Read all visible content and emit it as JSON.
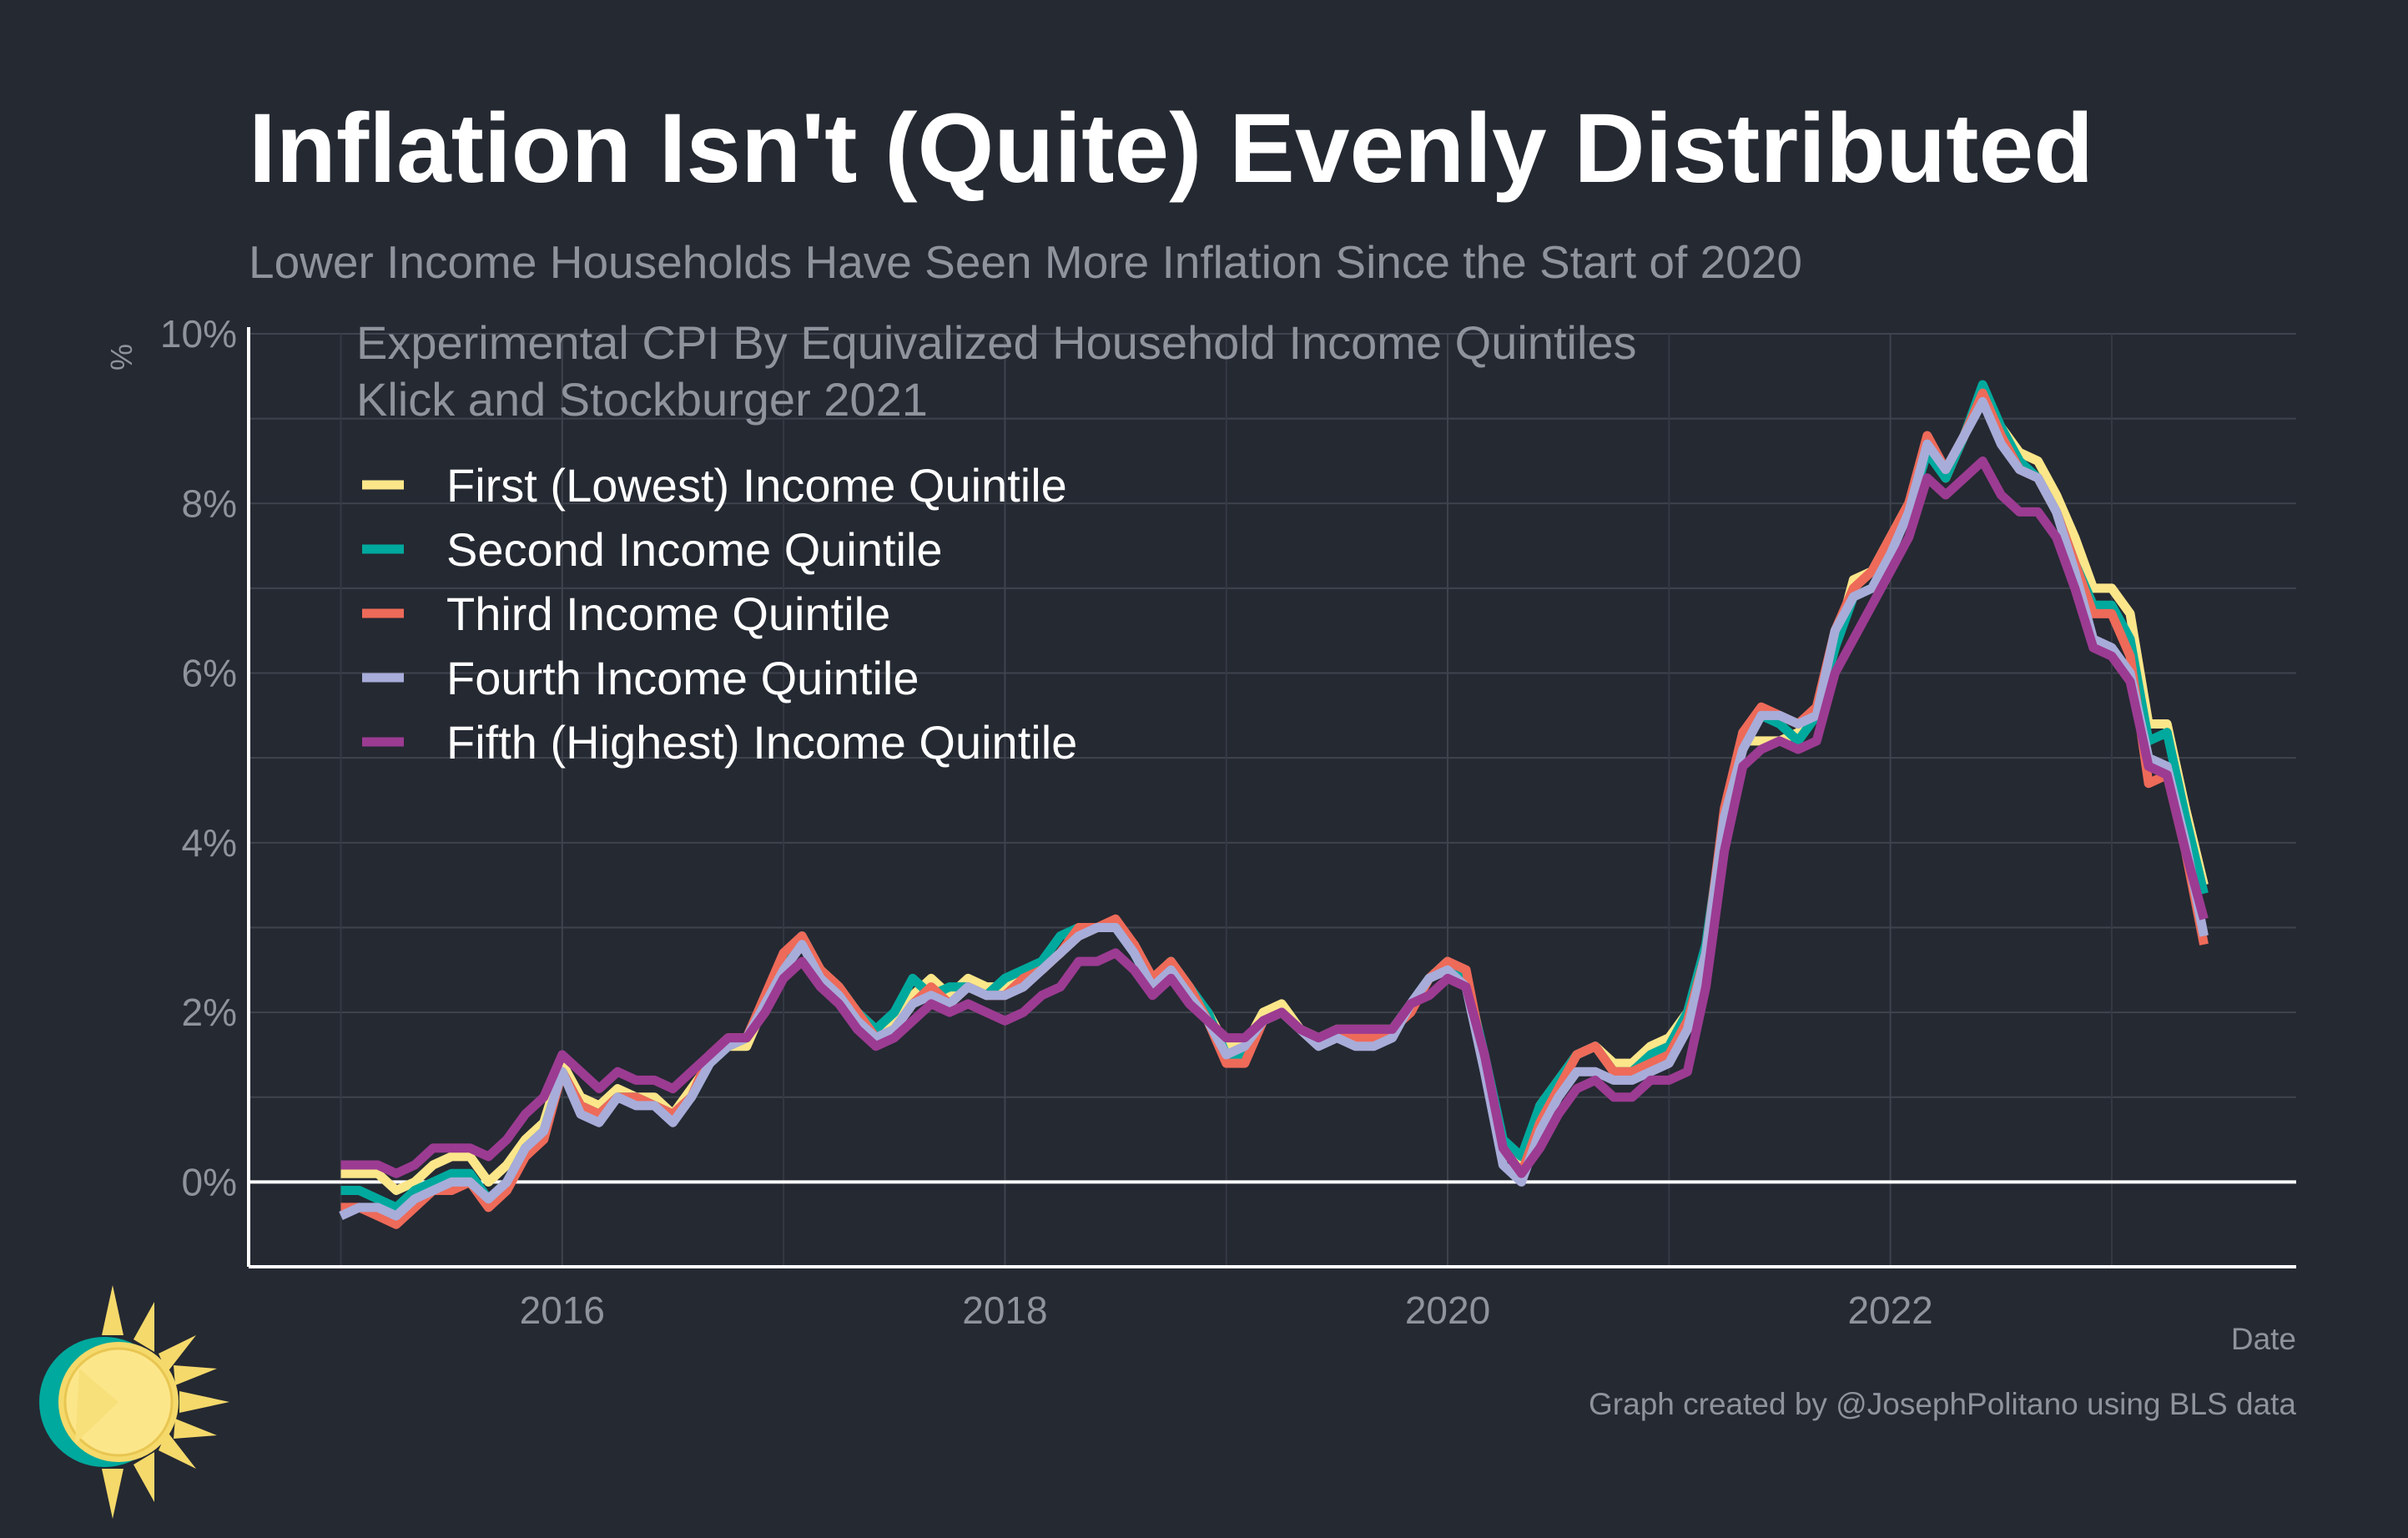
{
  "header": {
    "title": "Inflation Isn't (Quite) Evenly Distributed",
    "subtitle": "Lower Income Households Have Seen More Inflation Since the Start of 2020"
  },
  "footer": {
    "caption": "Graph created by @JosephPolitano using BLS data"
  },
  "logo": {
    "icon": "sun-logo-icon"
  },
  "chart_data": {
    "type": "line",
    "legend_title_lines": [
      "Experimental CPI By Equivalized Household Income Quintiles",
      "Klick and Stockburger 2021"
    ],
    "legend_position": "top-left",
    "xlabel": "Date",
    "ylabel": "%",
    "xlim": [
      "2014-08",
      "2023-11"
    ],
    "ylim": [
      -1,
      10
    ],
    "y_ticks": [
      0,
      2,
      4,
      6,
      8,
      10
    ],
    "y_tick_labels": [
      "0%",
      "2%",
      "4%",
      "6%",
      "8%",
      "10%"
    ],
    "x_ticks": [
      "2016-01",
      "2018-01",
      "2020-01",
      "2022-01"
    ],
    "x_tick_labels": [
      "2016",
      "2018",
      "2020",
      "2022"
    ],
    "grid": true,
    "zero_line": true,
    "x_start": "2015-01",
    "frequency": "monthly",
    "series": [
      {
        "name": "First (Lowest) Income Quintile",
        "color": "#fce68a",
        "values": [
          0.1,
          0.1,
          0.1,
          -0.1,
          0.0,
          0.2,
          0.3,
          0.3,
          0.0,
          0.2,
          0.5,
          0.7,
          1.4,
          1.0,
          0.9,
          1.1,
          1.0,
          1.0,
          0.8,
          1.1,
          1.4,
          1.6,
          1.6,
          2.1,
          2.6,
          2.8,
          2.5,
          2.3,
          2.0,
          1.8,
          1.9,
          2.2,
          2.4,
          2.2,
          2.4,
          2.3,
          2.3,
          2.4,
          2.5,
          2.7,
          2.9,
          3.0,
          3.0,
          2.8,
          2.4,
          2.6,
          2.2,
          2.0,
          1.6,
          1.6,
          2.0,
          2.1,
          1.8,
          1.7,
          1.8,
          1.8,
          1.8,
          1.8,
          2.1,
          2.4,
          2.6,
          2.4,
          1.4,
          0.4,
          0.2,
          0.9,
          1.2,
          1.5,
          1.6,
          1.4,
          1.4,
          1.6,
          1.7,
          2.0,
          2.6,
          4.2,
          5.2,
          5.2,
          5.2,
          5.3,
          5.5,
          6.3,
          7.1,
          7.2,
          7.6,
          8.0,
          8.7,
          8.3,
          8.8,
          9.3,
          8.9,
          8.6,
          8.5,
          8.1,
          7.6,
          7.0,
          7.0,
          6.7,
          5.4,
          5.4,
          4.4,
          3.5
        ]
      },
      {
        "name": "Second Income Quintile",
        "color": "#00a99d",
        "values": [
          -0.1,
          -0.1,
          -0.2,
          -0.3,
          -0.1,
          0.0,
          0.1,
          0.1,
          -0.2,
          0.0,
          0.4,
          0.6,
          1.3,
          0.9,
          0.8,
          1.0,
          1.0,
          0.9,
          0.8,
          1.0,
          1.4,
          1.6,
          1.7,
          2.1,
          2.6,
          2.9,
          2.5,
          2.3,
          2.0,
          1.8,
          2.0,
          2.4,
          2.2,
          2.3,
          2.3,
          2.2,
          2.4,
          2.5,
          2.6,
          2.9,
          3.0,
          3.0,
          3.0,
          2.7,
          2.3,
          2.6,
          2.3,
          2.0,
          1.5,
          1.5,
          1.9,
          2.0,
          1.8,
          1.6,
          1.8,
          1.7,
          1.7,
          1.8,
          2.1,
          2.4,
          2.6,
          2.4,
          1.5,
          0.5,
          0.3,
          0.9,
          1.2,
          1.5,
          1.6,
          1.3,
          1.3,
          1.5,
          1.6,
          2.0,
          2.8,
          4.3,
          5.3,
          5.5,
          5.4,
          5.2,
          5.5,
          6.3,
          6.9,
          7.0,
          7.4,
          7.9,
          8.6,
          8.3,
          8.8,
          9.4,
          8.9,
          8.5,
          8.3,
          7.9,
          7.3,
          6.8,
          6.8,
          6.4,
          5.2,
          5.3,
          4.3,
          3.4
        ]
      },
      {
        "name": "Third Income Quintile",
        "color": "#ee6a59",
        "values": [
          -0.3,
          -0.3,
          -0.4,
          -0.5,
          -0.3,
          -0.1,
          -0.1,
          0.0,
          -0.3,
          -0.1,
          0.3,
          0.5,
          1.3,
          0.9,
          0.8,
          1.0,
          1.0,
          0.9,
          0.8,
          1.0,
          1.5,
          1.7,
          1.7,
          2.2,
          2.7,
          2.9,
          2.5,
          2.3,
          2.0,
          1.7,
          1.8,
          2.1,
          2.3,
          2.1,
          2.3,
          2.2,
          2.2,
          2.4,
          2.5,
          2.7,
          3.0,
          3.0,
          3.1,
          2.8,
          2.4,
          2.6,
          2.3,
          1.9,
          1.4,
          1.4,
          1.9,
          2.0,
          1.8,
          1.6,
          1.8,
          1.7,
          1.7,
          1.8,
          2.0,
          2.4,
          2.6,
          2.5,
          1.4,
          0.4,
          0.1,
          0.7,
          1.1,
          1.5,
          1.6,
          1.3,
          1.3,
          1.4,
          1.5,
          1.9,
          2.7,
          4.4,
          5.3,
          5.6,
          5.5,
          5.4,
          5.6,
          6.5,
          7.0,
          7.2,
          7.6,
          8.0,
          8.8,
          8.4,
          8.8,
          9.3,
          8.8,
          8.4,
          8.3,
          7.9,
          7.3,
          6.7,
          6.7,
          6.2,
          4.7,
          4.8,
          3.9,
          2.8
        ]
      },
      {
        "name": "Fourth Income Quintile",
        "color": "#a8acd9",
        "values": [
          -0.4,
          -0.3,
          -0.3,
          -0.4,
          -0.2,
          -0.1,
          0.0,
          0.0,
          -0.2,
          0.0,
          0.4,
          0.6,
          1.3,
          0.8,
          0.7,
          1.0,
          0.9,
          0.9,
          0.7,
          1.0,
          1.4,
          1.6,
          1.7,
          2.1,
          2.5,
          2.8,
          2.4,
          2.2,
          1.9,
          1.7,
          1.8,
          2.1,
          2.2,
          2.1,
          2.3,
          2.2,
          2.2,
          2.3,
          2.5,
          2.7,
          2.9,
          3.0,
          3.0,
          2.7,
          2.3,
          2.5,
          2.2,
          1.9,
          1.5,
          1.6,
          1.9,
          2.0,
          1.8,
          1.6,
          1.7,
          1.6,
          1.6,
          1.7,
          2.1,
          2.4,
          2.5,
          2.3,
          1.3,
          0.2,
          0.0,
          0.6,
          1.0,
          1.3,
          1.3,
          1.2,
          1.2,
          1.3,
          1.4,
          1.8,
          2.7,
          4.3,
          5.1,
          5.5,
          5.5,
          5.4,
          5.5,
          6.5,
          6.9,
          7.0,
          7.4,
          7.9,
          8.7,
          8.4,
          8.8,
          9.2,
          8.7,
          8.4,
          8.3,
          7.9,
          7.2,
          6.4,
          6.3,
          6.0,
          5.0,
          4.9,
          4.0,
          2.9
        ]
      },
      {
        "name": "Fifth (Highest) Income Quintile",
        "color": "#9c3b92",
        "values": [
          0.2,
          0.2,
          0.2,
          0.1,
          0.2,
          0.4,
          0.4,
          0.4,
          0.3,
          0.5,
          0.8,
          1.0,
          1.5,
          1.3,
          1.1,
          1.3,
          1.2,
          1.2,
          1.1,
          1.3,
          1.5,
          1.7,
          1.7,
          2.0,
          2.4,
          2.6,
          2.3,
          2.1,
          1.8,
          1.6,
          1.7,
          1.9,
          2.1,
          2.0,
          2.1,
          2.0,
          1.9,
          2.0,
          2.2,
          2.3,
          2.6,
          2.6,
          2.7,
          2.5,
          2.2,
          2.4,
          2.1,
          1.9,
          1.7,
          1.7,
          1.9,
          2.0,
          1.8,
          1.7,
          1.8,
          1.8,
          1.8,
          1.8,
          2.1,
          2.2,
          2.4,
          2.3,
          1.5,
          0.4,
          0.1,
          0.4,
          0.8,
          1.1,
          1.2,
          1.0,
          1.0,
          1.2,
          1.2,
          1.3,
          2.3,
          3.9,
          4.9,
          5.1,
          5.2,
          5.1,
          5.2,
          6.0,
          6.4,
          6.8,
          7.2,
          7.6,
          8.3,
          8.1,
          8.3,
          8.5,
          8.1,
          7.9,
          7.9,
          7.6,
          7.0,
          6.3,
          6.2,
          5.9,
          4.9,
          4.8,
          3.9,
          3.1
        ]
      }
    ]
  }
}
